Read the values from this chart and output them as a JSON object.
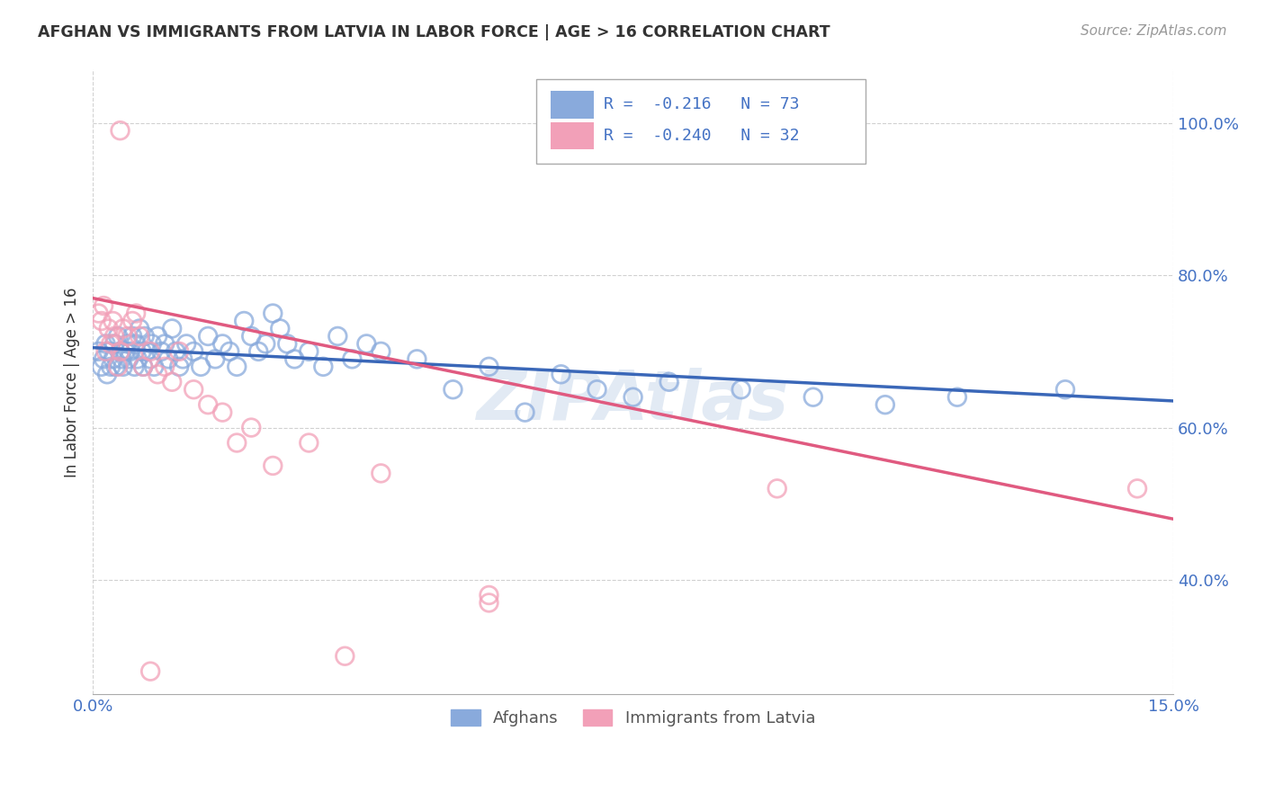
{
  "title": "AFGHAN VS IMMIGRANTS FROM LATVIA IN LABOR FORCE | AGE > 16 CORRELATION CHART",
  "source": "Source: ZipAtlas.com",
  "ylabel": "In Labor Force | Age > 16",
  "xlim": [
    0.0,
    15.0
  ],
  "ylim": [
    25.0,
    107.0
  ],
  "yticks": [
    40.0,
    60.0,
    80.0,
    100.0
  ],
  "ytick_labels": [
    "40.0%",
    "60.0%",
    "80.0%",
    "100.0%"
  ],
  "xticks": [
    0.0,
    15.0
  ],
  "xtick_labels": [
    "0.0%",
    "15.0%"
  ],
  "blue_color": "#89aadc",
  "pink_color": "#f2a0b8",
  "blue_line_color": "#3a67b8",
  "pink_line_color": "#e05a80",
  "legend_R_blue": "-0.216",
  "legend_N_blue": "73",
  "legend_R_pink": "-0.240",
  "legend_N_pink": "32",
  "legend_label_blue": "Afghans",
  "legend_label_pink": "Immigrants from Latvia",
  "watermark": "ZIPAtlas",
  "blue_trend_x": [
    0.0,
    15.0
  ],
  "blue_trend_y": [
    70.5,
    63.5
  ],
  "pink_trend_x": [
    0.0,
    15.0
  ],
  "pink_trend_y": [
    77.0,
    48.0
  ],
  "background_color": "#ffffff",
  "grid_color": "#cccccc",
  "title_color": "#333333",
  "tick_label_color": "#4472c4",
  "blue_x": [
    0.08,
    0.12,
    0.15,
    0.18,
    0.2,
    0.22,
    0.25,
    0.28,
    0.3,
    0.32,
    0.35,
    0.38,
    0.4,
    0.42,
    0.45,
    0.48,
    0.5,
    0.52,
    0.55,
    0.58,
    0.6,
    0.62,
    0.65,
    0.68,
    0.7,
    0.72,
    0.75,
    0.8,
    0.82,
    0.85,
    0.9,
    0.95,
    1.0,
    1.05,
    1.1,
    1.15,
    1.2,
    1.25,
    1.3,
    1.4,
    1.5,
    1.6,
    1.7,
    1.8,
    1.9,
    2.0,
    2.1,
    2.2,
    2.3,
    2.4,
    2.5,
    2.6,
    2.7,
    2.8,
    3.0,
    3.2,
    3.4,
    3.6,
    3.8,
    4.0,
    4.5,
    5.0,
    5.5,
    6.0,
    6.5,
    7.0,
    7.5,
    8.0,
    9.0,
    10.0,
    11.0,
    12.0,
    13.5
  ],
  "blue_y": [
    70,
    68,
    69,
    71,
    67,
    70,
    68,
    69,
    71,
    68,
    72,
    70,
    69,
    68,
    70,
    71,
    69,
    70,
    72,
    68,
    71,
    69,
    73,
    70,
    68,
    72,
    70,
    69,
    71,
    68,
    72,
    70,
    71,
    69,
    73,
    70,
    68,
    69,
    71,
    70,
    68,
    72,
    69,
    71,
    70,
    68,
    74,
    72,
    70,
    71,
    75,
    73,
    71,
    69,
    70,
    68,
    72,
    69,
    71,
    70,
    69,
    65,
    68,
    62,
    67,
    65,
    64,
    66,
    65,
    64,
    63,
    64,
    65
  ],
  "pink_x": [
    0.08,
    0.12,
    0.15,
    0.18,
    0.22,
    0.25,
    0.28,
    0.3,
    0.35,
    0.38,
    0.42,
    0.48,
    0.55,
    0.6,
    0.65,
    0.7,
    0.8,
    0.9,
    1.0,
    1.1,
    1.2,
    1.4,
    1.6,
    1.8,
    2.0,
    2.2,
    2.5,
    3.0,
    4.0,
    5.5,
    9.5,
    14.5
  ],
  "pink_y": [
    75,
    74,
    76,
    70,
    73,
    71,
    74,
    72,
    68,
    70,
    73,
    72,
    74,
    75,
    72,
    68,
    70,
    67,
    68,
    66,
    70,
    65,
    63,
    62,
    58,
    60,
    55,
    58,
    54,
    38,
    52,
    52
  ]
}
